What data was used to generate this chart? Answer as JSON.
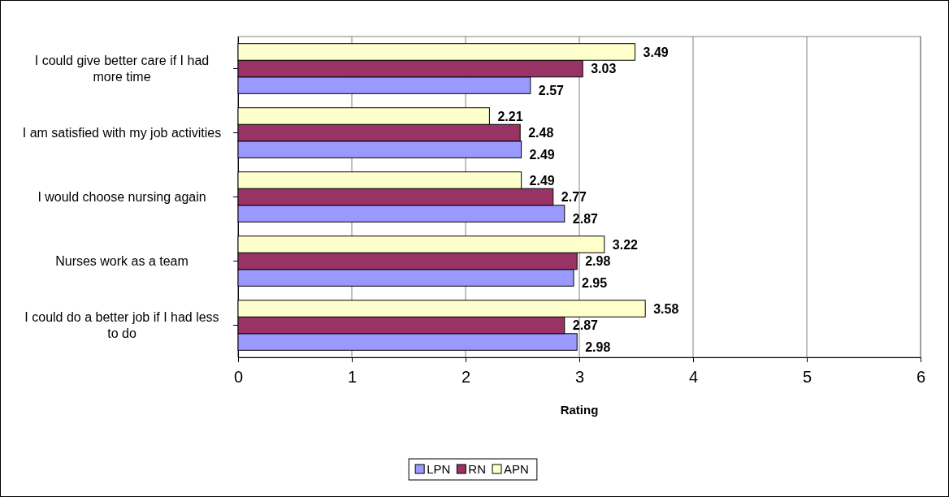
{
  "chart_data": {
    "type": "bar",
    "orientation": "horizontal",
    "xlabel": "Rating",
    "categories": [
      "I could give better care if I had more time",
      "I am satisfied with my job activities",
      "I would choose nursing again",
      "Nurses work as a team",
      "I could do a better job if I had less to do"
    ],
    "series": [
      {
        "name": "LPN",
        "color": "#9999ff",
        "values": [
          2.57,
          2.49,
          2.87,
          2.95,
          2.98
        ]
      },
      {
        "name": "RN",
        "color": "#993366",
        "values": [
          3.03,
          2.48,
          2.77,
          2.98,
          2.87
        ]
      },
      {
        "name": "APN",
        "color": "#ffffcc",
        "values": [
          3.49,
          2.21,
          2.49,
          3.22,
          3.58
        ]
      }
    ],
    "xlim": [
      0,
      6
    ],
    "xticks": [
      0,
      1,
      2,
      3,
      4,
      5,
      6
    ],
    "grid": "x",
    "legend": "bottom",
    "data_labels": true
  }
}
